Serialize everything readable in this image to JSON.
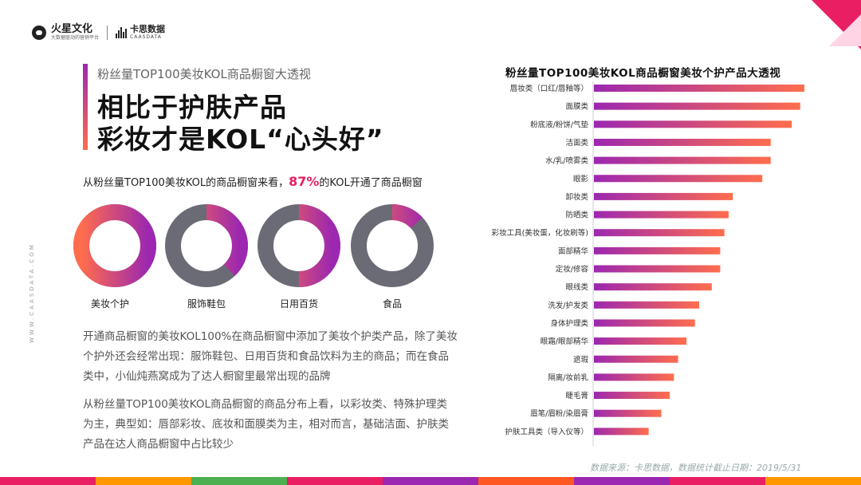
{
  "header": {
    "logo_left_name": "火星文化",
    "logo_left_tagline": "大数据驱动的营销平台",
    "logo_right_name": "卡思数据",
    "logo_right_sub": "CAASDATA"
  },
  "side_url": "WWW.CAASDATA.COM",
  "title": {
    "subtitle": "粉丝量TOP100美妆KOL商品橱窗大透视",
    "headline_line1": "相比于护肤产品",
    "headline_line2": "彩妆才是KOL“心头好”"
  },
  "intro": {
    "prefix": "从粉丝量TOP100美妆KOL的商品橱窗来看，",
    "pct": "87%",
    "suffix": "的KOL开通了商品橱窗"
  },
  "donuts": [
    {
      "label": "美妆个护",
      "share": 1.0
    },
    {
      "label": "服饰鞋包",
      "share": 0.38
    },
    {
      "label": "日用百货",
      "share": 0.5
    },
    {
      "label": "食品",
      "share": 0.13
    }
  ],
  "paragraphs": {
    "p1": "开通商品橱窗的美妆KOL100%在商品橱窗中添加了美妆个护类产品，除了美妆个护外还会经常出现：服饰鞋包、日用百货和食品饮料为主的商品；而在食品类中，小仙炖燕窝成为了达人橱窗里最常出现的品牌",
    "p2": "从粉丝量TOP100美妆KOL商品橱窗的商品分布上看，以彩妆类、特殊护理类为主，典型如：唇部彩妆、底妆和面膜类为主，相对而言，基础洁面、护肤类产品在达人商品橱窗中占比较少"
  },
  "chart_data": {
    "type": "bar",
    "orientation": "horizontal",
    "title": "粉丝量TOP100美妆KOL商品橱窗美妆个护产品大透视",
    "categories": [
      "唇妆类（口红/唇釉等）",
      "面膜类",
      "粉底液/粉饼/气垫",
      "洁面类",
      "水/乳/喷雾类",
      "眼影",
      "卸妆类",
      "防晒类",
      "彩妆工具(美妆蛋，化妆刷等)",
      "面部精华",
      "定妆/修容",
      "眼线类",
      "洗发/护发类",
      "身体护理类",
      "眼霜/眼部精华",
      "遮瑕",
      "隔离/妆前乳",
      "睫毛膏",
      "眉笔/眉粉/染眉膏",
      "护肤工具类（导入仪等）"
    ],
    "values": [
      100,
      98,
      94,
      84,
      84,
      80,
      66,
      64,
      62,
      60,
      60,
      56,
      50,
      48,
      44,
      40,
      38,
      36,
      32,
      26
    ],
    "xlim": [
      0,
      100
    ],
    "colors": {
      "start": "#9c27b0",
      "end": "#ff6d4d"
    },
    "grid": false,
    "legend": "none"
  },
  "source": "数据来源：卡思数据，数据统计截止日期：2019/5/31",
  "colors": {
    "accent_pink": "#e91e63",
    "donut_gray": "#6b6b75",
    "gradient_start": "#9c27b0",
    "gradient_end": "#ff6d4d"
  }
}
